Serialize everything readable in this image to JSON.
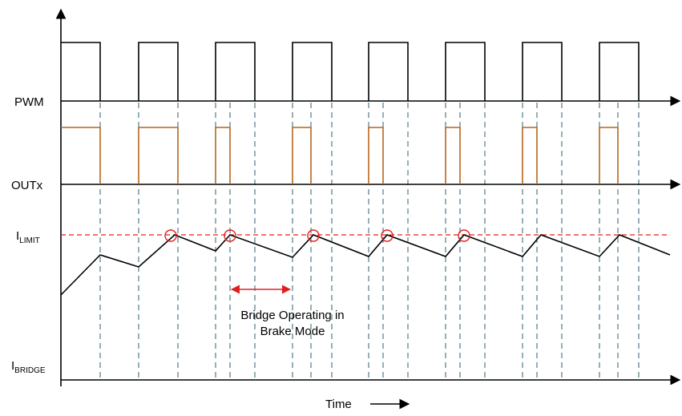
{
  "labels": {
    "pwm": "PWM",
    "outx": "OUTx",
    "ilimit_main": "I",
    "ilimit_sub": "LIMIT",
    "ibridge_main": "I",
    "ibridge_sub": "BRIDGE",
    "time": "Time",
    "annotation_line1": "Bridge Operating in",
    "annotation_line2": "Brake Mode"
  },
  "colors": {
    "axis": "#000000",
    "pwm": "#000000",
    "outx": "#b5651d",
    "current": "#000000",
    "ilimit_line": "#e02020",
    "markers": "#e02020",
    "arrow": "#e02020",
    "guides": "#2f5f70"
  },
  "icons": {
    "time_arrow": "right-arrow-icon",
    "brake_arrow": "double-arrow-icon"
  }
}
